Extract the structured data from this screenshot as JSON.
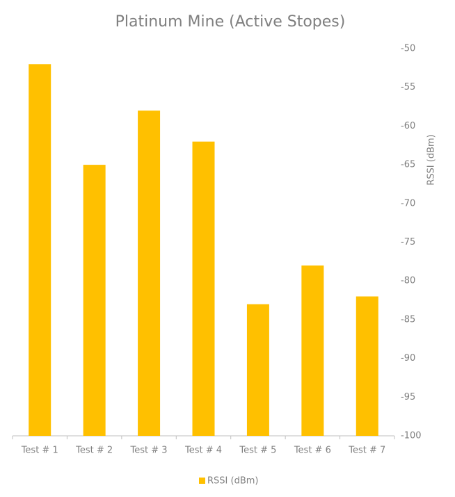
{
  "chart_data": {
    "type": "bar",
    "title": "Platinum Mine (Active Stopes)",
    "categories": [
      "Test # 1",
      "Test # 2",
      "Test # 3",
      "Test # 4",
      "Test # 5",
      "Test # 6",
      "Test # 7"
    ],
    "series": [
      {
        "name": "RSSI (dBm)",
        "color": "#ffc000",
        "values": [
          -52,
          -65,
          -58,
          -62,
          -83,
          -78,
          -82
        ]
      }
    ],
    "y_axis_label": "RSSI (dBm)",
    "ylim": [
      -100,
      -50
    ],
    "yticks": [
      -100,
      -95,
      -90,
      -85,
      -80,
      -75,
      -70,
      -65,
      -60,
      -55,
      -50
    ],
    "grid": false,
    "legend": "bottom"
  }
}
